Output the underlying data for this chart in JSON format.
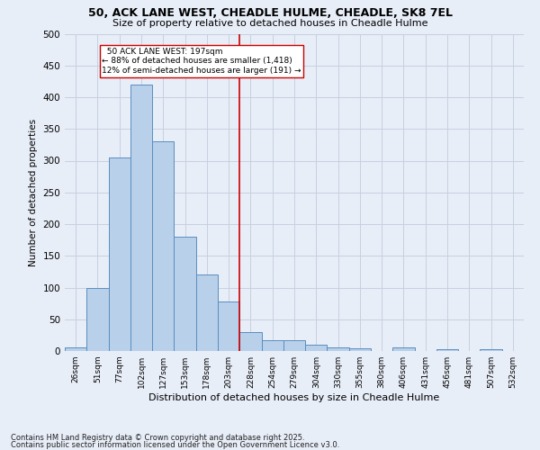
{
  "title_line1": "50, ACK LANE WEST, CHEADLE HULME, CHEADLE, SK8 7EL",
  "title_line2": "Size of property relative to detached houses in Cheadle Hulme",
  "xlabel": "Distribution of detached houses by size in Cheadle Hulme",
  "ylabel": "Number of detached properties",
  "footer_line1": "Contains HM Land Registry data © Crown copyright and database right 2025.",
  "footer_line2": "Contains public sector information licensed under the Open Government Licence v3.0.",
  "categories": [
    "26sqm",
    "51sqm",
    "77sqm",
    "102sqm",
    "127sqm",
    "153sqm",
    "178sqm",
    "203sqm",
    "228sqm",
    "254sqm",
    "279sqm",
    "304sqm",
    "330sqm",
    "355sqm",
    "380sqm",
    "406sqm",
    "431sqm",
    "456sqm",
    "481sqm",
    "507sqm",
    "532sqm"
  ],
  "values": [
    5,
    100,
    305,
    420,
    330,
    180,
    120,
    78,
    30,
    17,
    17,
    10,
    5,
    4,
    0,
    5,
    0,
    3,
    0,
    3,
    0
  ],
  "bar_color": "#b8d0ea",
  "bar_edge_color": "#5b8dbf",
  "vline_x": 7.5,
  "vline_color": "#cc0000",
  "annotation_text": "  50 ACK LANE WEST: 197sqm  \n← 88% of detached houses are smaller (1,418)\n12% of semi-detached houses are larger (191) →",
  "annotation_box_color": "#ffffff",
  "annotation_box_edge_color": "#cc0000",
  "ylim": [
    0,
    500
  ],
  "yticks": [
    0,
    50,
    100,
    150,
    200,
    250,
    300,
    350,
    400,
    450,
    500
  ],
  "bg_color": "#e8eef8",
  "plot_bg_color": "#e8eef8",
  "grid_color": "#c8d0e0"
}
